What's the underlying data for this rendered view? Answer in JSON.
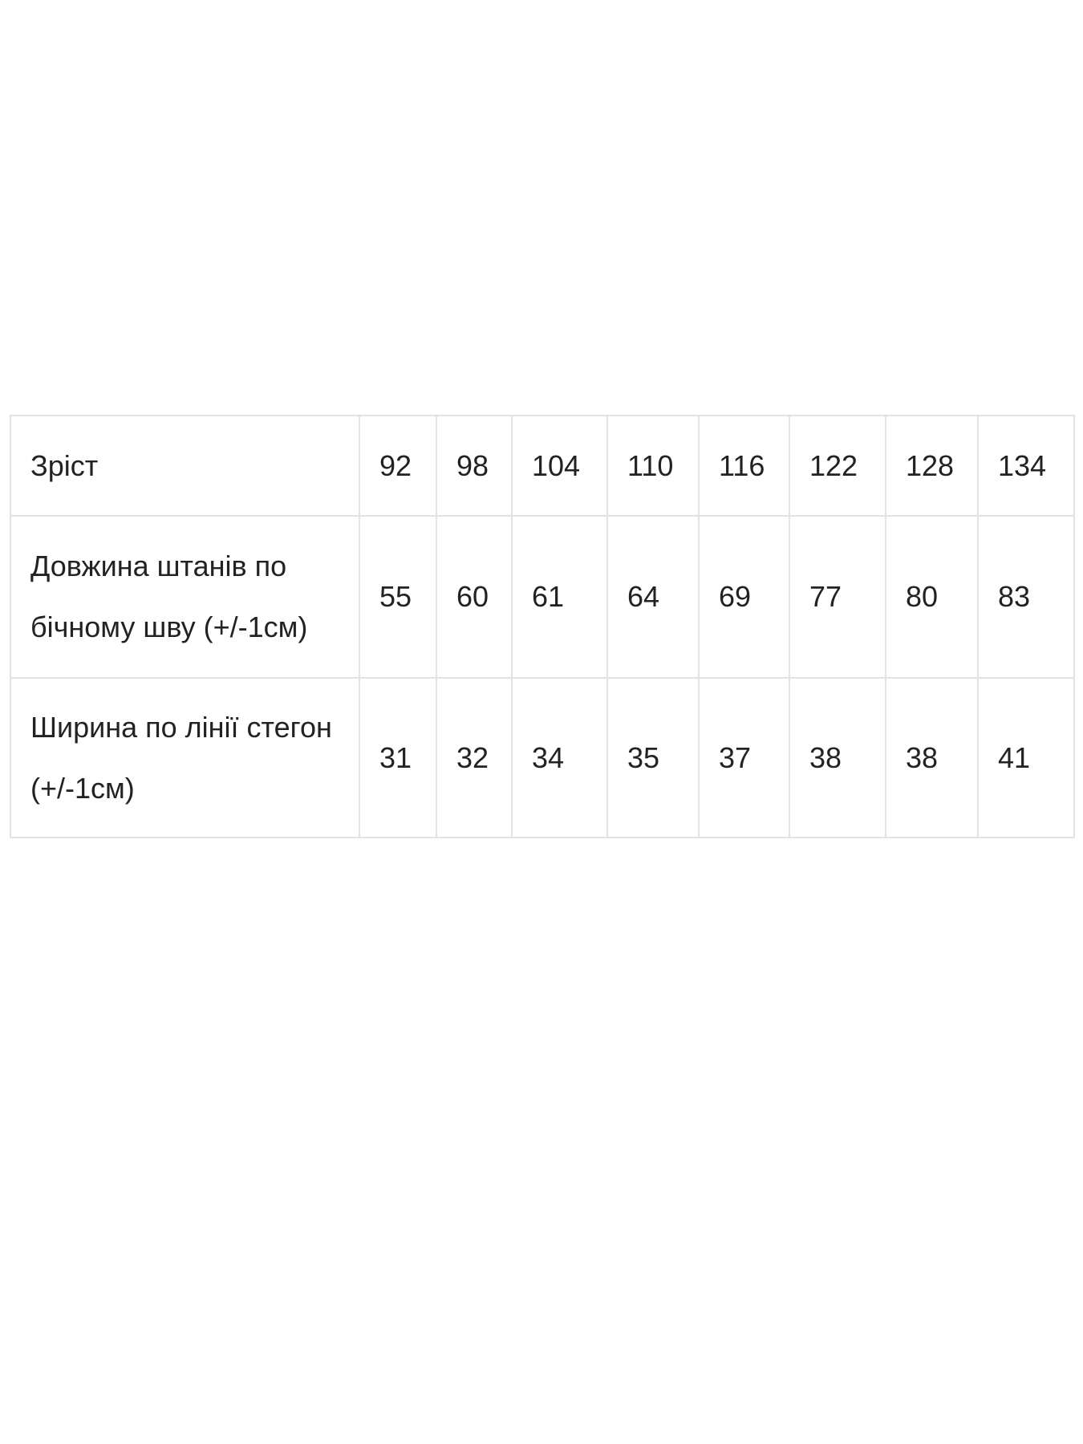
{
  "size_table": {
    "header": {
      "label": "Зріст",
      "values": [
        "92",
        "98",
        "104",
        "110",
        "116",
        "122",
        "128",
        "134"
      ]
    },
    "rows": [
      {
        "label": "Довжина штанів по бічному шву (+/-1см)",
        "values": [
          "55",
          "60",
          "61",
          "64",
          "69",
          "77",
          "80",
          "83"
        ]
      },
      {
        "label": "Ширина по лінії стегон (+/-1см)",
        "values": [
          "31",
          "32",
          "34",
          "35",
          "37",
          "38",
          "38",
          "41"
        ]
      }
    ]
  }
}
